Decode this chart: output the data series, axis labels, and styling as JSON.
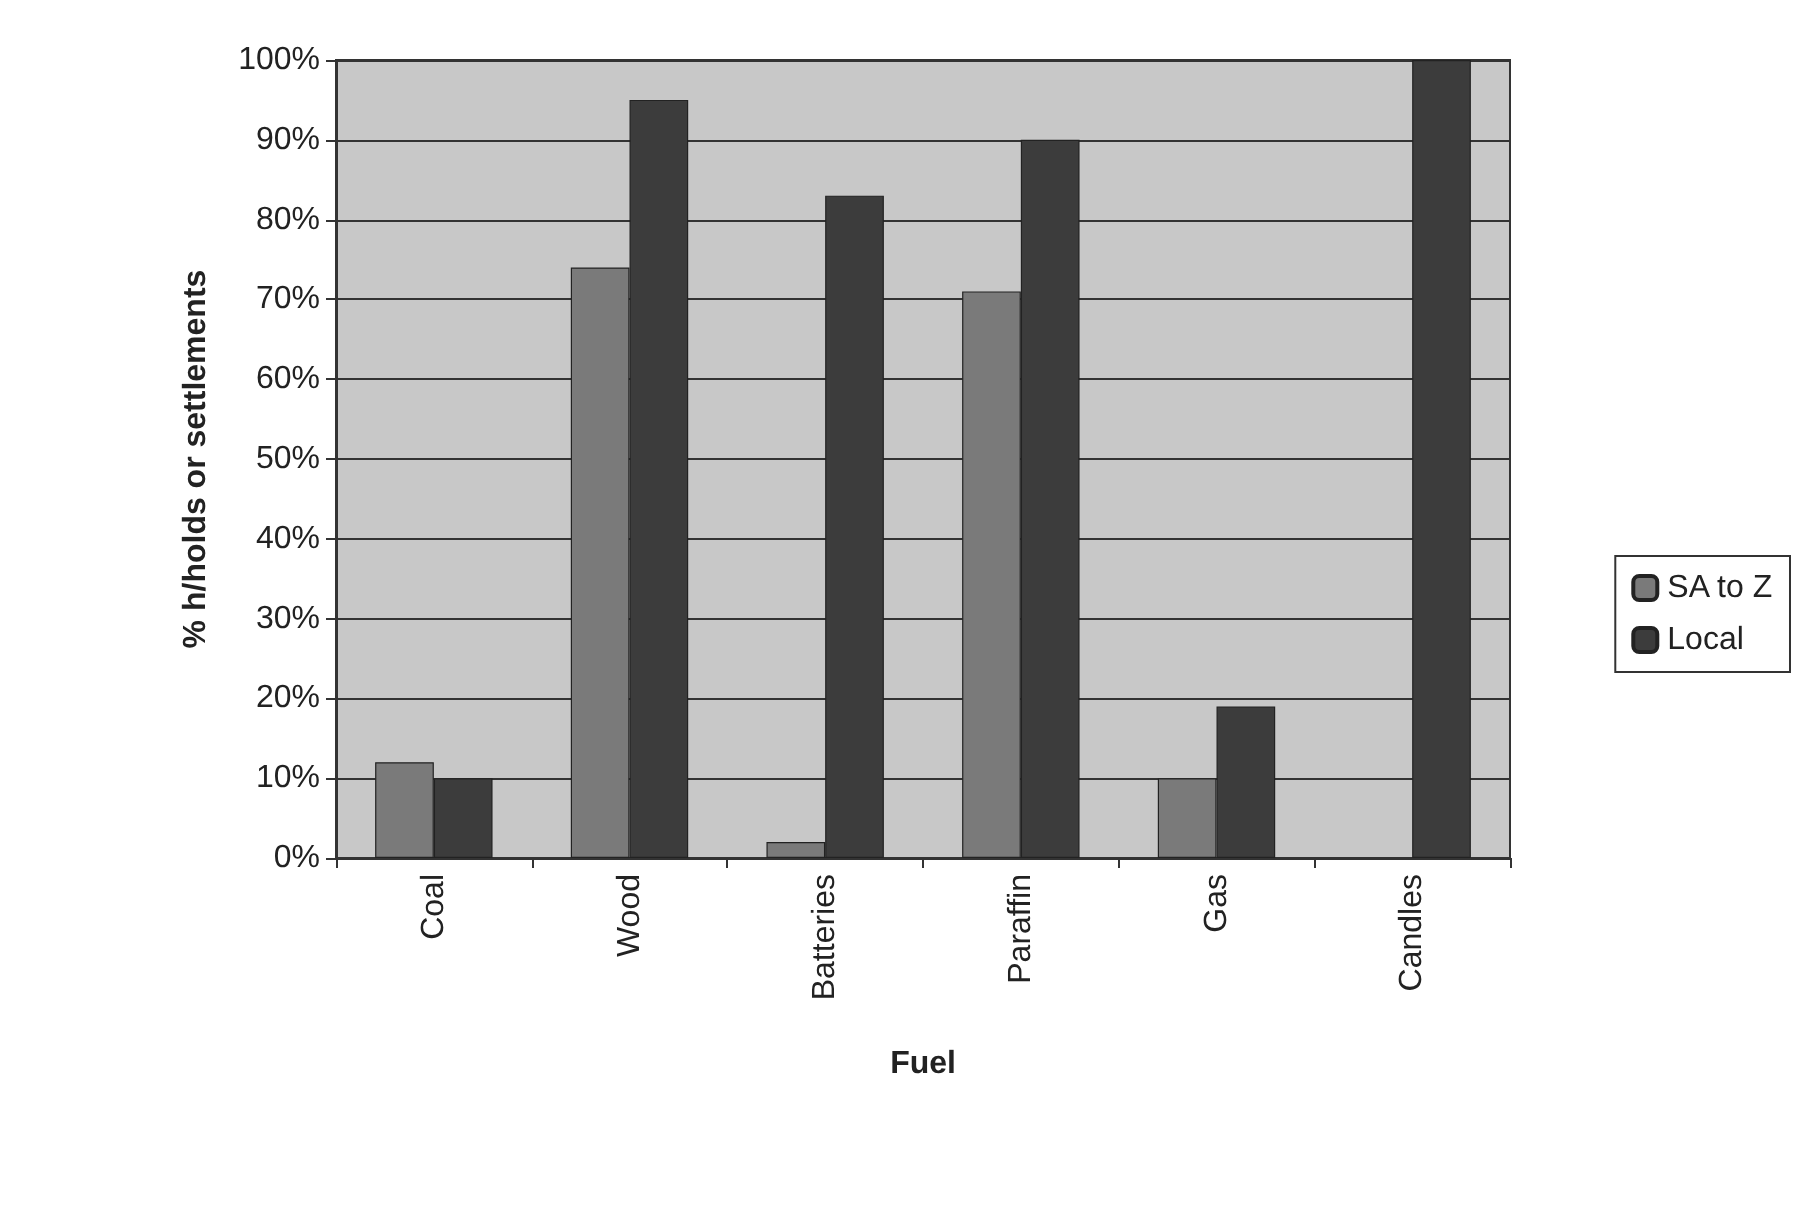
{
  "chart_data": {
    "type": "bar",
    "xlabel": "Fuel",
    "ylabel": "% h/holds or settlements",
    "categories": [
      "Coal",
      "Wood",
      "Batteries",
      "Paraffin",
      "Gas",
      "Candles"
    ],
    "series": [
      {
        "name": "SA to Z",
        "color": "#7a7a7a",
        "values": [
          12,
          74,
          2,
          71,
          10,
          null
        ]
      },
      {
        "name": "Local",
        "color": "#3c3c3c",
        "values": [
          10,
          95,
          83,
          90,
          19,
          100
        ]
      }
    ],
    "ylim": [
      0,
      100
    ],
    "yticks": [
      {
        "value": 0,
        "label": "0%"
      },
      {
        "value": 10,
        "label": "10%"
      },
      {
        "value": 20,
        "label": "20%"
      },
      {
        "value": 30,
        "label": "30%"
      },
      {
        "value": 40,
        "label": "40%"
      },
      {
        "value": 50,
        "label": "50%"
      },
      {
        "value": 60,
        "label": "60%"
      },
      {
        "value": 70,
        "label": "70%"
      },
      {
        "value": 80,
        "label": "80%"
      },
      {
        "value": 90,
        "label": "90%"
      },
      {
        "value": 100,
        "label": "100%"
      }
    ],
    "grid": "y",
    "legend": "right"
  }
}
